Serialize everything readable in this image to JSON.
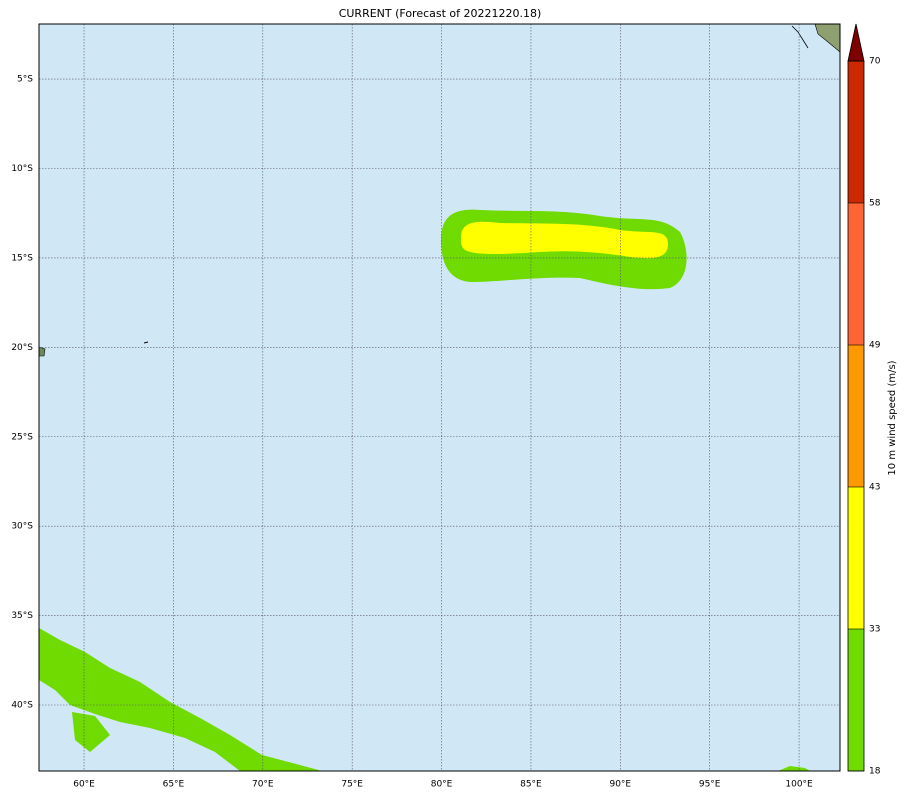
{
  "map": {
    "title": "CURRENT (Forecast of 20221220.18)",
    "xlim": [
      57.48,
      102.29
    ],
    "ylim": [
      -43.69,
      -1.92
    ],
    "xticks": [
      {
        "value": 60,
        "label": "60°E"
      },
      {
        "value": 65,
        "label": "65°E"
      },
      {
        "value": 70,
        "label": "70°E"
      },
      {
        "value": 75,
        "label": "75°E"
      },
      {
        "value": 80,
        "label": "80°E"
      },
      {
        "value": 85,
        "label": "85°E"
      },
      {
        "value": 90,
        "label": "90°E"
      },
      {
        "value": 95,
        "label": "95°E"
      },
      {
        "value": 100,
        "label": "100°E"
      }
    ],
    "yticks": [
      {
        "value": -5,
        "label": "5°S"
      },
      {
        "value": -10,
        "label": "10°S"
      },
      {
        "value": -15,
        "label": "15°S"
      },
      {
        "value": -20,
        "label": "20°S"
      },
      {
        "value": -25,
        "label": "25°S"
      },
      {
        "value": -30,
        "label": "30°S"
      },
      {
        "value": -35,
        "label": "35°S"
      },
      {
        "value": -40,
        "label": "40°S"
      }
    ],
    "colorbar": {
      "label": "10 m wind speed (m/s)",
      "levels": [
        18,
        33,
        43,
        49,
        58,
        70
      ],
      "colors": [
        "#6fdb00",
        "#ffff00",
        "#ff9900",
        "#ff6633",
        "#cc2900"
      ],
      "extend_color": "#7f0000"
    }
  }
}
